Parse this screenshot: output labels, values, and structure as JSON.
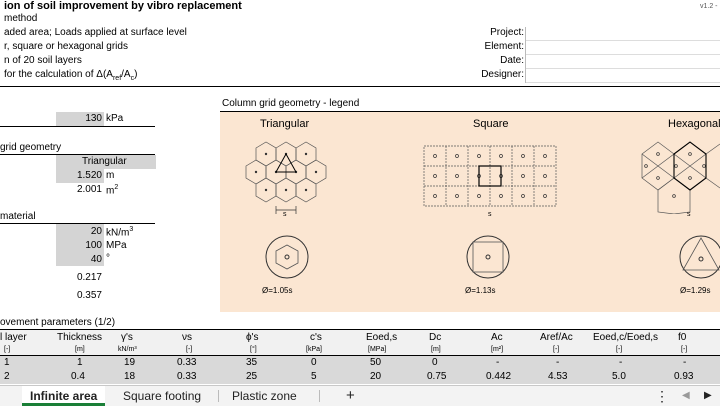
{
  "header": {
    "title": "ion of soil improvement by vibro replacement",
    "version": "v1.2 -",
    "lines": [
      "method",
      "aded area; Loads applied at surface level",
      "r, square or hexagonal grids",
      "n of 20 soil layers",
      "for the calculation of Δ(A",
      "ref",
      "/A",
      "c",
      ")"
    ]
  },
  "project_fields": [
    {
      "label": "Project:"
    },
    {
      "label": "Element:"
    },
    {
      "label": "Date:"
    },
    {
      "label": "Designer:"
    }
  ],
  "load": {
    "value": "130",
    "unit": "kPa"
  },
  "grid_geometry": {
    "heading": "grid geometry",
    "type": "Triangular",
    "spacing": "1.520",
    "spacing_unit": "m",
    "area": "2.001",
    "area_unit": "m",
    "area_exp": "2"
  },
  "material": {
    "heading": "material",
    "gamma": "20",
    "gamma_unit": "kN/m",
    "gamma_exp": "3",
    "modulus": "100",
    "modulus_unit": "MPa",
    "phi": "40",
    "phi_unit": "°",
    "v1": "0.217",
    "v2": "0.357"
  },
  "legend": {
    "title": "Column grid geometry - legend",
    "triangular": {
      "label": "Triangular",
      "s": "s",
      "diam": "Ø=1.05s"
    },
    "square": {
      "label": "Square",
      "s": "s",
      "diam": "Ø=1.13s"
    },
    "hexagonal": {
      "label": "Hexagonal",
      "s": "s",
      "diam": "Ø=1.29s"
    }
  },
  "improvement_params": {
    "heading": "ovement parameters (1/2)",
    "columns": [
      {
        "name": "l layer",
        "unit": "[-]"
      },
      {
        "name": "Thickness",
        "unit": "[m]"
      },
      {
        "name": "γ's",
        "unit": "kN/m³"
      },
      {
        "name": "νs",
        "unit": "[-]"
      },
      {
        "name": "ϕ's",
        "unit": "[°]"
      },
      {
        "name": "c's",
        "unit": "[kPa]"
      },
      {
        "name": "Eoed,s",
        "unit": "[MPa]"
      },
      {
        "name": "Dc",
        "unit": "[m]"
      },
      {
        "name": "Ac",
        "unit": "[m²]"
      },
      {
        "name": "Aref/Ac",
        "unit": "[-]"
      },
      {
        "name": "Eoed,c/Eoed,s",
        "unit": "[-]"
      },
      {
        "name": "f0",
        "unit": "[-]"
      }
    ],
    "rows": [
      [
        "1",
        "1",
        "19",
        "0.33",
        "35",
        "0",
        "50",
        "0",
        "-",
        "-",
        "-",
        "-"
      ],
      [
        "2",
        "0.4",
        "18",
        "0.33",
        "25",
        "5",
        "20",
        "0.75",
        "0.442",
        "4.53",
        "5.0",
        "0.93"
      ]
    ]
  },
  "tabs": [
    {
      "label": "Infinite area",
      "active": true
    },
    {
      "label": "Square footing",
      "active": false
    },
    {
      "label": "Plastic zone",
      "active": false
    }
  ],
  "add_tab": "+",
  "tabbar_icons": [
    "more-options-icon",
    "scroll-left-icon",
    "scroll-right-icon"
  ],
  "colors": {
    "legend_bg": "#fbe6d2",
    "input_gray": "#d4d4d4",
    "active_tab": "#1a7f37"
  }
}
